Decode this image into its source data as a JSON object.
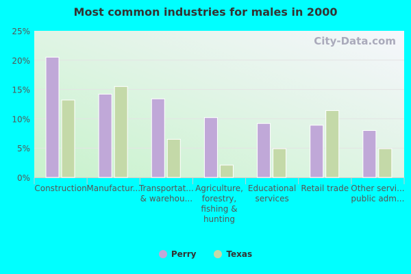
{
  "chart_data": {
    "type": "bar",
    "title": "Most common industries for males in 2000",
    "categories": [
      [
        "Construction"
      ],
      [
        "Manufactur..."
      ],
      [
        "Transportat...",
        "& warehou..."
      ],
      [
        "Agriculture,",
        "forestry,",
        "fishing &",
        "hunting"
      ],
      [
        "Educational",
        "services"
      ],
      [
        "Retail trade"
      ],
      [
        "Other servi...",
        "public adm..."
      ]
    ],
    "series": [
      {
        "name": "Perry",
        "color": "#c0a8d8",
        "values": [
          20.5,
          14.2,
          13.4,
          10.2,
          9.2,
          8.9,
          8.0
        ]
      },
      {
        "name": "Texas",
        "color": "#c4d9a8",
        "values": [
          13.2,
          15.5,
          6.5,
          2.1,
          4.9,
          11.4,
          4.9
        ]
      }
    ],
    "yticks": [
      "0%",
      "5%",
      "10%",
      "15%",
      "20%",
      "25%"
    ],
    "ylim": [
      0,
      25
    ],
    "grid": true,
    "legend": "bottom",
    "watermark": "City-Data.com"
  }
}
